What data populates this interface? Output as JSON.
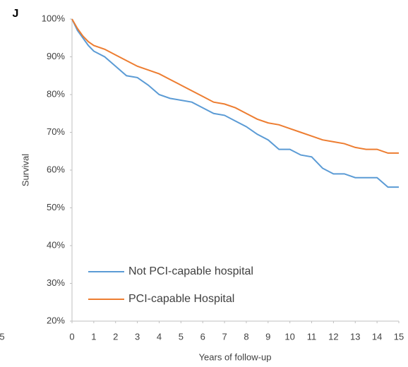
{
  "panel_label": "J",
  "edge_text": "5",
  "chart_data": {
    "type": "line",
    "x_label": "Years of follow-up",
    "y_label": "Survival",
    "x": [
      0,
      0.25,
      0.5,
      0.75,
      1,
      1.5,
      2,
      2.5,
      3,
      3.5,
      4,
      4.5,
      5,
      5.5,
      6,
      6.5,
      7,
      7.5,
      8,
      8.5,
      9,
      9.5,
      10,
      10.5,
      11,
      11.5,
      12,
      12.5,
      13,
      13.5,
      14,
      14.5,
      15
    ],
    "series": [
      {
        "name": "Not PCI-capable hospital",
        "color": "#5b9bd5",
        "values": [
          100,
          97,
          95,
          93,
          91.5,
          90,
          87.5,
          85,
          84.5,
          82.5,
          80,
          79,
          78.5,
          78,
          76.5,
          75,
          74.5,
          73,
          71.5,
          69.5,
          68,
          65.5,
          65.5,
          64,
          63.5,
          60.5,
          59,
          59,
          58,
          58,
          58,
          55.5,
          55.5
        ]
      },
      {
        "name": "PCI-capable Hospital",
        "color": "#ed7d31",
        "values": [
          100,
          97.5,
          95.5,
          94,
          93,
          92,
          90.5,
          89,
          87.5,
          86.5,
          85.5,
          84,
          82.5,
          81,
          79.5,
          78,
          77.5,
          76.5,
          75,
          73.5,
          72.5,
          72,
          71,
          70,
          69,
          68,
          67.5,
          67,
          66,
          65.5,
          65.5,
          64.5,
          64.5
        ]
      }
    ],
    "xlim": [
      0,
      15
    ],
    "xticks": [
      0,
      1,
      2,
      3,
      4,
      5,
      6,
      7,
      8,
      9,
      10,
      11,
      12,
      13,
      14,
      15
    ],
    "ylim": [
      20,
      100
    ],
    "yticks": [
      {
        "value": 20,
        "label": "20%"
      },
      {
        "value": 30,
        "label": "30%"
      },
      {
        "value": 40,
        "label": "40%"
      },
      {
        "value": 50,
        "label": "50%"
      },
      {
        "value": 60,
        "label": "60%"
      },
      {
        "value": 70,
        "label": "70%"
      },
      {
        "value": 80,
        "label": "80%"
      },
      {
        "value": 90,
        "label": "90%"
      },
      {
        "value": 100,
        "label": "100%"
      }
    ],
    "grid": false,
    "legend": "lower left"
  }
}
